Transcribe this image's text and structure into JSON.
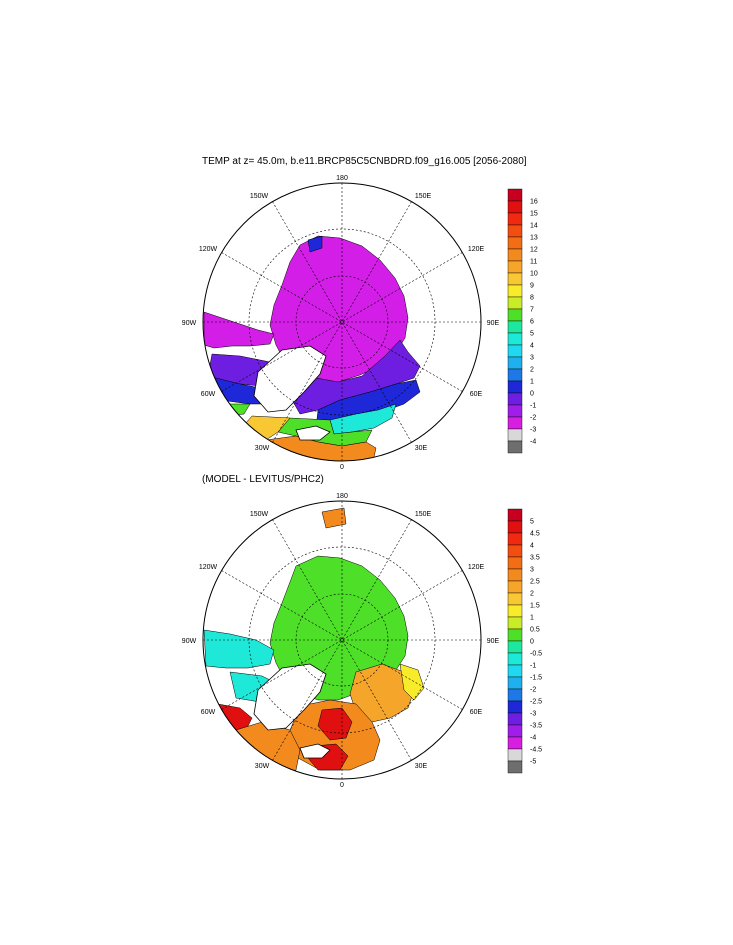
{
  "panels": [
    {
      "title": "TEMP at z=  45.0m, b.e11.BRCP85C5CNBDRD.f09_g16.005 [2056-2080]",
      "lon_labels": {
        "n": "180",
        "nw": "150W",
        "ne": "150E",
        "wnw": "120W",
        "ene": "120E",
        "w": "90W",
        "e": "90E",
        "wsw": "60W",
        "ese": "60E",
        "ssw": "30W",
        "sse": "30E",
        "s": "0"
      },
      "colorbar": {
        "labels": [
          "16",
          "15",
          "14",
          "13",
          "12",
          "11",
          "10",
          "9",
          "8",
          "7",
          "6",
          "5",
          "4",
          "3",
          "2",
          "1",
          "0",
          "-1",
          "-2",
          "-3",
          "-4"
        ],
        "colors": [
          "#c8001e",
          "#e01010",
          "#f02a10",
          "#f24e12",
          "#f26d14",
          "#f28a1e",
          "#f5a52a",
          "#f8c834",
          "#f8ec2a",
          "#c8ec28",
          "#4ee028",
          "#1ee8a0",
          "#1ee8d8",
          "#20d8f0",
          "#20b0f0",
          "#1e78e8",
          "#1e28d8",
          "#6e1ee0",
          "#a01ee8",
          "#d81ee0",
          "#d8d8d8",
          "#6e6e6e"
        ]
      }
    },
    {
      "title": "(MODEL - LEVITUS/PHC2)",
      "lon_labels": {
        "n": "180",
        "nw": "150W",
        "ne": "150E",
        "wnw": "120W",
        "ene": "120E",
        "w": "90W",
        "e": "90E",
        "wsw": "60W",
        "ese": "60E",
        "ssw": "30W",
        "sse": "30E",
        "s": "0"
      },
      "colorbar": {
        "labels": [
          "5",
          "4.5",
          "4",
          "3.5",
          "3",
          "2.5",
          "2",
          "1.5",
          "1",
          "0.5",
          "0",
          "-0.5",
          "-1",
          "-1.5",
          "-2",
          "-2.5",
          "-3",
          "-3.5",
          "-4",
          "-4.5",
          "-5"
        ],
        "colors": [
          "#c8001e",
          "#e01010",
          "#f02a10",
          "#f24e12",
          "#f26d14",
          "#f28a1e",
          "#f5a52a",
          "#f8c834",
          "#f8ec2a",
          "#c8ec28",
          "#4ee028",
          "#1ee8a0",
          "#1ee8d8",
          "#20d8f0",
          "#20b0f0",
          "#1e78e8",
          "#1e28d8",
          "#6e1ee0",
          "#a01ee8",
          "#d81ee0",
          "#d8d8d8",
          "#6e6e6e"
        ]
      }
    }
  ],
  "colors": {
    "land": "#ffffff",
    "coast": "#000000",
    "grid": "#000000",
    "t_ice": "#d21ee6",
    "t_shelf_blue": "#1e28d8",
    "t_purple": "#6e1ee0",
    "t_warm_orange": "#f28a1e",
    "t_mid_green": "#4ee028",
    "t_cyan": "#1ee8d8",
    "t_yellow": "#f8c834",
    "d_zero": "#4ee028",
    "d_neg_cyan": "#1ee8d8",
    "d_orange": "#f28a1e",
    "d_red": "#e01010",
    "d_yellow": "#f8ec2a",
    "d_light_orange": "#f5a52a"
  }
}
